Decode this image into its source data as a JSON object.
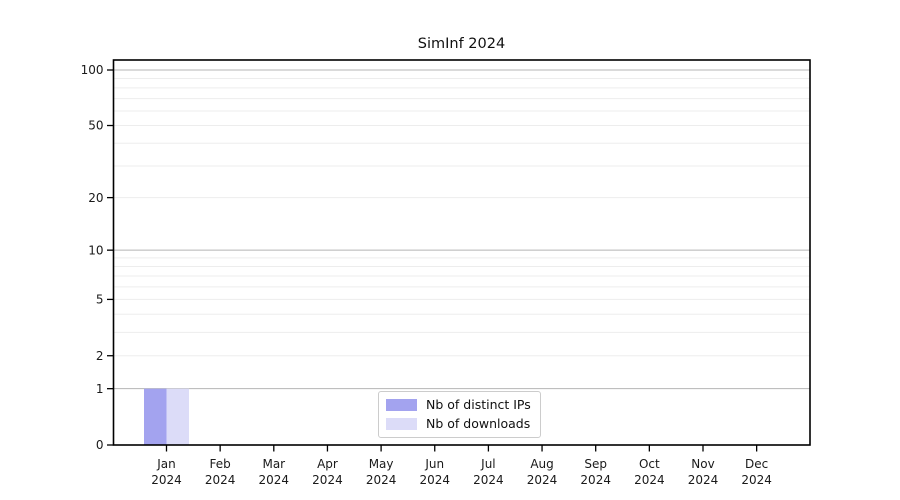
{
  "chart_data": {
    "type": "bar",
    "title": "SimInf 2024",
    "categories": [
      "Jan 2024",
      "Feb 2024",
      "Mar 2024",
      "Apr 2024",
      "May 2024",
      "Jun 2024",
      "Jul 2024",
      "Aug 2024",
      "Sep 2024",
      "Oct 2024",
      "Nov 2024",
      "Dec 2024"
    ],
    "series": [
      {
        "name": "Nb of distinct IPs",
        "color": "#a3a3ef",
        "values": [
          1,
          0,
          0,
          0,
          0,
          0,
          0,
          0,
          0,
          0,
          0,
          0
        ]
      },
      {
        "name": "Nb of downloads",
        "color": "#dcdcf8",
        "values": [
          1,
          0,
          0,
          0,
          0,
          0,
          0,
          0,
          0,
          0,
          0,
          0
        ]
      }
    ],
    "xlabel": "",
    "ylabel": "",
    "y_axis": {
      "scale": "log1p",
      "ylim": [
        0,
        113
      ],
      "ticks": [
        0,
        1,
        2,
        5,
        10,
        20,
        50,
        100
      ],
      "major_gridlines": [
        1,
        10,
        100
      ],
      "minor_gridlines": [
        2,
        3,
        4,
        5,
        6,
        7,
        8,
        9,
        20,
        30,
        40,
        50,
        60,
        70,
        80,
        90
      ]
    },
    "legend": {
      "position": "bottom-center"
    },
    "colors": {
      "axis": "#000000",
      "tick_text": "#1a1a1a",
      "major_grid": "#b5b5b5",
      "minor_grid": "#ededed",
      "background": "#ffffff"
    },
    "grid": "horizontal-only"
  }
}
